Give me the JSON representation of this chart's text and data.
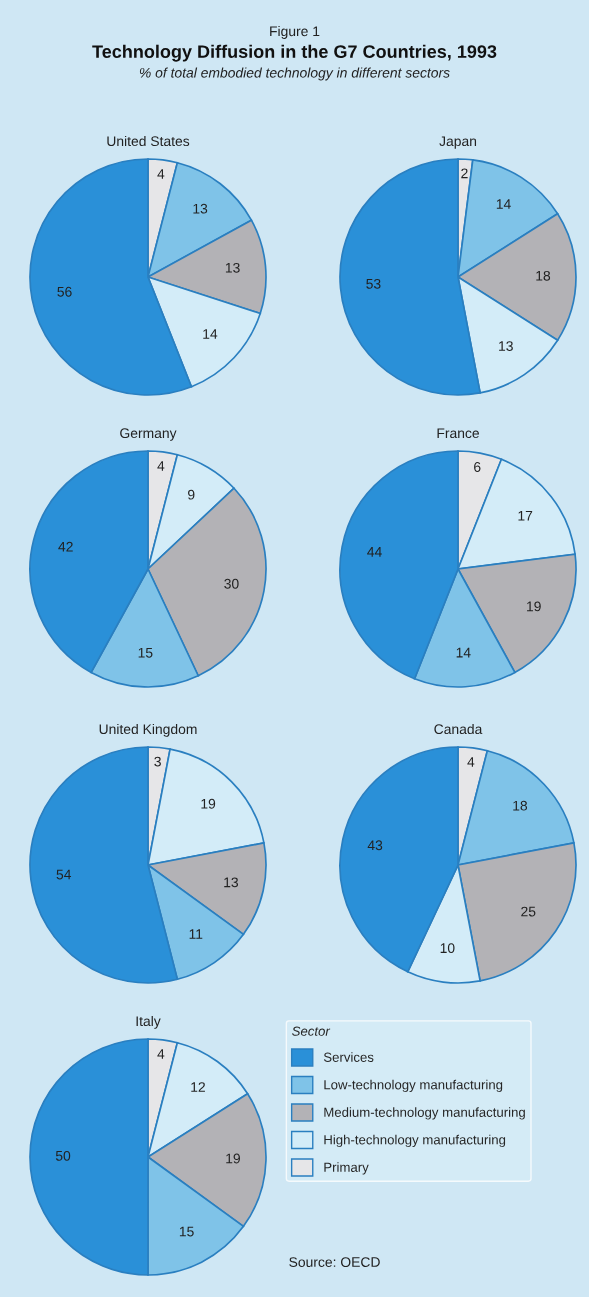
{
  "chart_data": [
    {
      "type": "other",
      "title": "Technology Diffusion in the G7 Countries, 1993",
      "subtitle": "% of total embodied technology in different sectors",
      "annotations": [
        "Figure 1"
      ]
    },
    {
      "type": "pie",
      "title": "United States",
      "categories": [
        null,
        null,
        null,
        null,
        null
      ],
      "values": [
        4,
        13,
        13,
        14,
        56
      ],
      "colors": [
        "#e6e6e8",
        "#7fc3e8",
        "#b3b2b6",
        "#d3ecf8",
        "#2a90d8"
      ],
      "data_labels": true
    },
    {
      "type": "pie",
      "title": "Japan",
      "categories": [
        null,
        null,
        null,
        null,
        null
      ],
      "values": [
        2,
        14,
        18,
        13,
        53
      ],
      "colors": [
        "#e6e6e8",
        "#7fc3e8",
        "#b3b2b6",
        "#d3ecf8",
        "#2a90d8"
      ],
      "data_labels": true
    },
    {
      "type": "pie",
      "title": "Germany",
      "categories": [
        null,
        null,
        null,
        null,
        null
      ],
      "values": [
        4,
        9,
        30,
        15,
        42
      ],
      "colors": [
        "#e6e6e8",
        "#d3ecf8",
        "#b3b2b6",
        "#7fc3e8",
        "#2a90d8"
      ],
      "data_labels": true
    },
    {
      "type": "pie",
      "title": "France",
      "categories": [
        null,
        null,
        null,
        null,
        null
      ],
      "values": [
        6,
        17,
        19,
        14,
        44
      ],
      "colors": [
        "#e6e6e8",
        "#d3ecf8",
        "#b3b2b6",
        "#7fc3e8",
        "#2a90d8"
      ],
      "data_labels": true
    },
    {
      "type": "pie",
      "title": "United Kingdom",
      "categories": [
        null,
        null,
        null,
        null,
        null
      ],
      "values": [
        3,
        19,
        13,
        11,
        54
      ],
      "colors": [
        "#e6e6e8",
        "#d3ecf8",
        "#b3b2b6",
        "#7fc3e8",
        "#2a90d8"
      ],
      "data_labels": true
    },
    {
      "type": "pie",
      "title": "Canada",
      "categories": [
        null,
        null,
        null,
        null,
        null
      ],
      "values": [
        4,
        18,
        25,
        10,
        43
      ],
      "colors": [
        "#e6e6e8",
        "#7fc3e8",
        "#b3b2b6",
        "#d3ecf8",
        "#2a90d8"
      ],
      "data_labels": true
    },
    {
      "type": "pie",
      "title": "Italy",
      "categories": [
        "Primary",
        "High-technology manufacturing",
        "Medium-technology manufacturing",
        "Low-technology manufacturing",
        "Services"
      ],
      "values": [
        4,
        12,
        19,
        15,
        50
      ],
      "colors": [
        "#e6e6e8",
        "#d3ecf8",
        "#b3b2b6",
        "#7fc3e8",
        "#2a90d8"
      ],
      "data_labels": true,
      "legend": "right",
      "legend_title": "Sector",
      "annotations": [
        "Source: OECD"
      ]
    }
  ]
}
